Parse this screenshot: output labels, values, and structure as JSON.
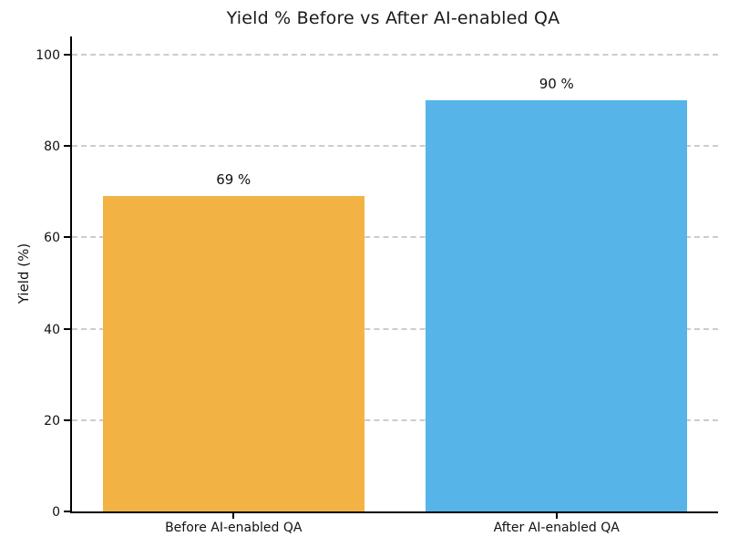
{
  "chart_data": {
    "type": "bar",
    "title": "Yield % Before vs After AI-enabled QA",
    "categories": [
      "Before AI-enabled QA",
      "After AI-enabled QA"
    ],
    "values": [
      69,
      90
    ],
    "value_labels": [
      "69 %",
      "90 %"
    ],
    "bar_colors": [
      "#F2B344",
      "#56B4E9"
    ],
    "xlabel": "",
    "ylabel": "Yield (%)",
    "ylim": [
      0,
      104
    ],
    "yticks": [
      0,
      20,
      40,
      60,
      80,
      100
    ],
    "grid": "horizontal-dashed",
    "grid_color": "#cccccc",
    "title_color": "#1a1a1a",
    "axis_color": "#000000",
    "legend": "none"
  }
}
